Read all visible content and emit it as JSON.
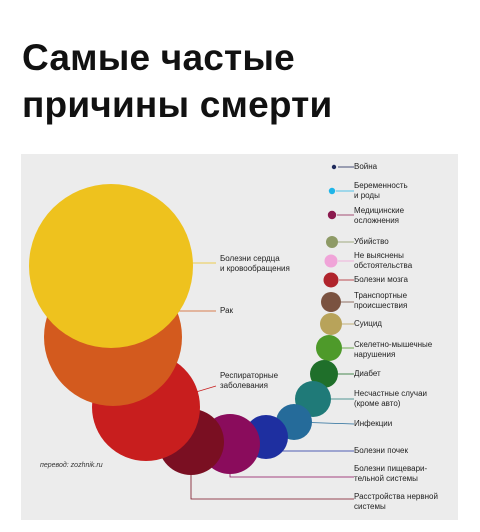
{
  "header": {
    "title_line1": "Самые частые",
    "title_line2": "причины смерти"
  },
  "credit": "перевод: zozhnik.ru",
  "chart_data": {
    "type": "bubble",
    "title": "Самые частые причины смерти",
    "legend_placement": "right",
    "series": [
      {
        "lines": [
          "Война"
        ],
        "color": "#1f2a5c",
        "dot": true
      },
      {
        "lines": [
          "Беременность",
          "и роды"
        ],
        "color": "#1fb5e8",
        "dot": true
      },
      {
        "lines": [
          "Медицинские",
          "осложнения"
        ],
        "color": "#8b1a4e",
        "dot": true
      },
      {
        "lines": [
          "Убийство"
        ],
        "color": "#8e9a66"
      },
      {
        "lines": [
          "Не выяснены",
          "обстоятельства"
        ],
        "color": "#f0a4d8"
      },
      {
        "lines": [
          "Болезни мозга"
        ],
        "color": "#b0242c"
      },
      {
        "lines": [
          "Транспортные",
          "происшествия"
        ],
        "color": "#7a5240"
      },
      {
        "lines": [
          "Суицид"
        ],
        "color": "#b8a35a"
      },
      {
        "lines": [
          "Скелетно-мышечные",
          "нарушения"
        ],
        "color": "#4e9a2a"
      },
      {
        "lines": [
          "Диабет"
        ],
        "color": "#1f6f2a"
      },
      {
        "lines": [
          "Несчастные случаи",
          "(кроме авто)"
        ],
        "color": "#1f7a78"
      },
      {
        "lines": [
          "Инфекции"
        ],
        "color": "#256b9a"
      },
      {
        "lines": [
          "Болезни почек"
        ],
        "color": "#1e2fa0"
      },
      {
        "lines": [
          "Болезни пищевари-",
          "тельной системы"
        ],
        "color": "#8a0c5c"
      },
      {
        "lines": [
          "Расстройства нервной",
          "системы"
        ],
        "color": "#7a0f22"
      },
      {
        "lines": [
          "Респираторные",
          "заболевания"
        ],
        "color": "#c81e1e"
      },
      {
        "lines": [
          "Рак"
        ],
        "color": "#d35a1e"
      },
      {
        "lines": [
          "Болезни сердца",
          "и кровообращения"
        ],
        "color": "#eec21e"
      }
    ]
  }
}
